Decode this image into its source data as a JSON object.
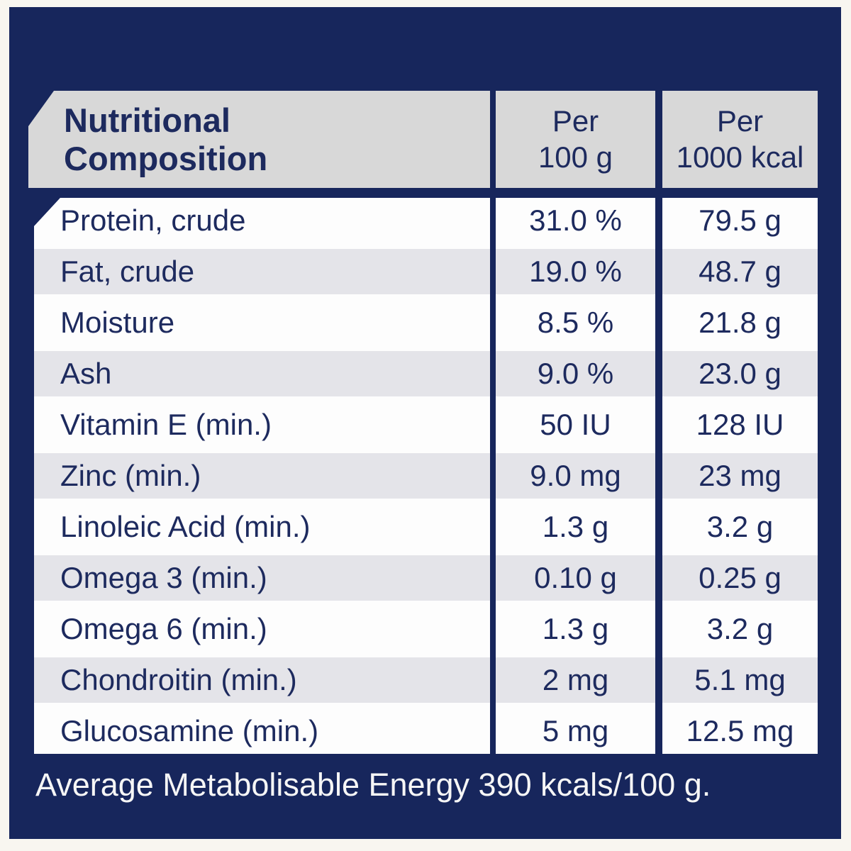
{
  "colors": {
    "outer_background": "#f8f6f0",
    "panel_navy": "#17265c",
    "header_gray": "#d8d8d8",
    "row_white": "#fdfdfd",
    "row_gray": "#e4e4e9",
    "text_navy": "#1d2a5e",
    "footer_text": "#f6f6f6"
  },
  "table": {
    "header": {
      "title": "Nutritional Composition",
      "title_line1": "Nutritional",
      "title_line2": "Composition",
      "col1_line1": "Per",
      "col1_line2": "100 g",
      "col2_line1": "Per",
      "col2_line2": "1000 kcal"
    },
    "rows": [
      {
        "label": "Protein, crude",
        "per_100g": "31.0 %",
        "per_1000kcal": "79.5 g"
      },
      {
        "label": "Fat, crude",
        "per_100g": "19.0 %",
        "per_1000kcal": "48.7 g"
      },
      {
        "label": "Moisture",
        "per_100g": "8.5 %",
        "per_1000kcal": "21.8 g"
      },
      {
        "label": "Ash",
        "per_100g": "9.0 %",
        "per_1000kcal": "23.0 g"
      },
      {
        "label": "Vitamin E (min.)",
        "per_100g": "50 IU",
        "per_1000kcal": "128 IU"
      },
      {
        "label": "Zinc (min.)",
        "per_100g": "9.0 mg",
        "per_1000kcal": "23 mg"
      },
      {
        "label": "Linoleic Acid (min.)",
        "per_100g": "1.3 g",
        "per_1000kcal": "3.2 g"
      },
      {
        "label": "Omega 3 (min.)",
        "per_100g": "0.10 g",
        "per_1000kcal": "0.25 g"
      },
      {
        "label": "Omega 6 (min.)",
        "per_100g": "1.3 g",
        "per_1000kcal": "3.2 g"
      },
      {
        "label": "Chondroitin (min.)",
        "per_100g": "2 mg",
        "per_1000kcal": "5.1 mg"
      },
      {
        "label": "Glucosamine (min.)",
        "per_100g": "5 mg",
        "per_1000kcal": "12.5 mg"
      }
    ]
  },
  "footer": {
    "text": "Average Metabolisable Energy 390 kcals/100 g."
  }
}
